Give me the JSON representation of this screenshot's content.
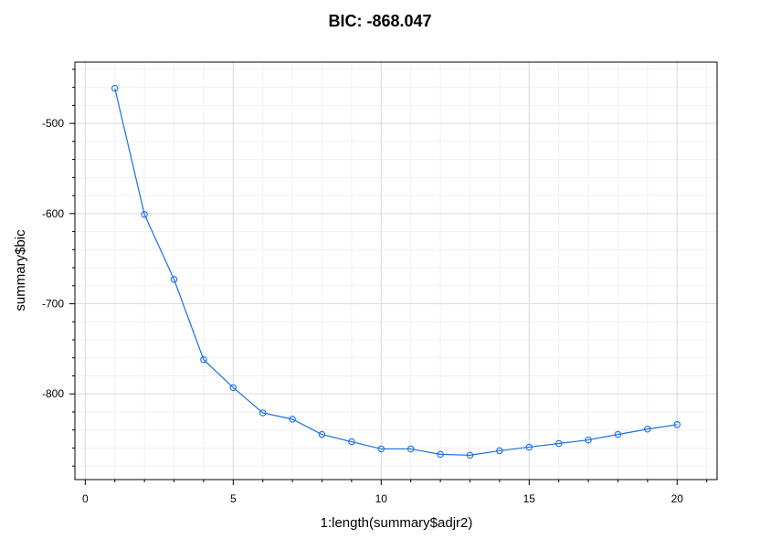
{
  "chart_data": {
    "type": "line",
    "title": "BIC: -868.047",
    "xlabel": "1:length(summary$adjr2)",
    "ylabel": "summary$bic",
    "xlim": [
      -0.35,
      21.35
    ],
    "ylim": [
      -895,
      -432
    ],
    "x_ticks": [
      "0",
      "5",
      "10",
      "15",
      "20"
    ],
    "y_ticks": [
      "-500",
      "-600",
      "-700",
      "-800"
    ],
    "grid": true,
    "line_color": "#1a6fe6",
    "series": [
      {
        "x": [
          1,
          2,
          3,
          4,
          5,
          6,
          7,
          8,
          9,
          10,
          11,
          12,
          13,
          14,
          15,
          16,
          17,
          18,
          19,
          20
        ],
        "y": [
          -461,
          -601,
          -673,
          -762,
          -793,
          -821,
          -828,
          -845,
          -853,
          -861,
          -861,
          -867,
          -868,
          -863,
          -859,
          -855,
          -851,
          -845,
          -839,
          -834
        ]
      }
    ]
  }
}
